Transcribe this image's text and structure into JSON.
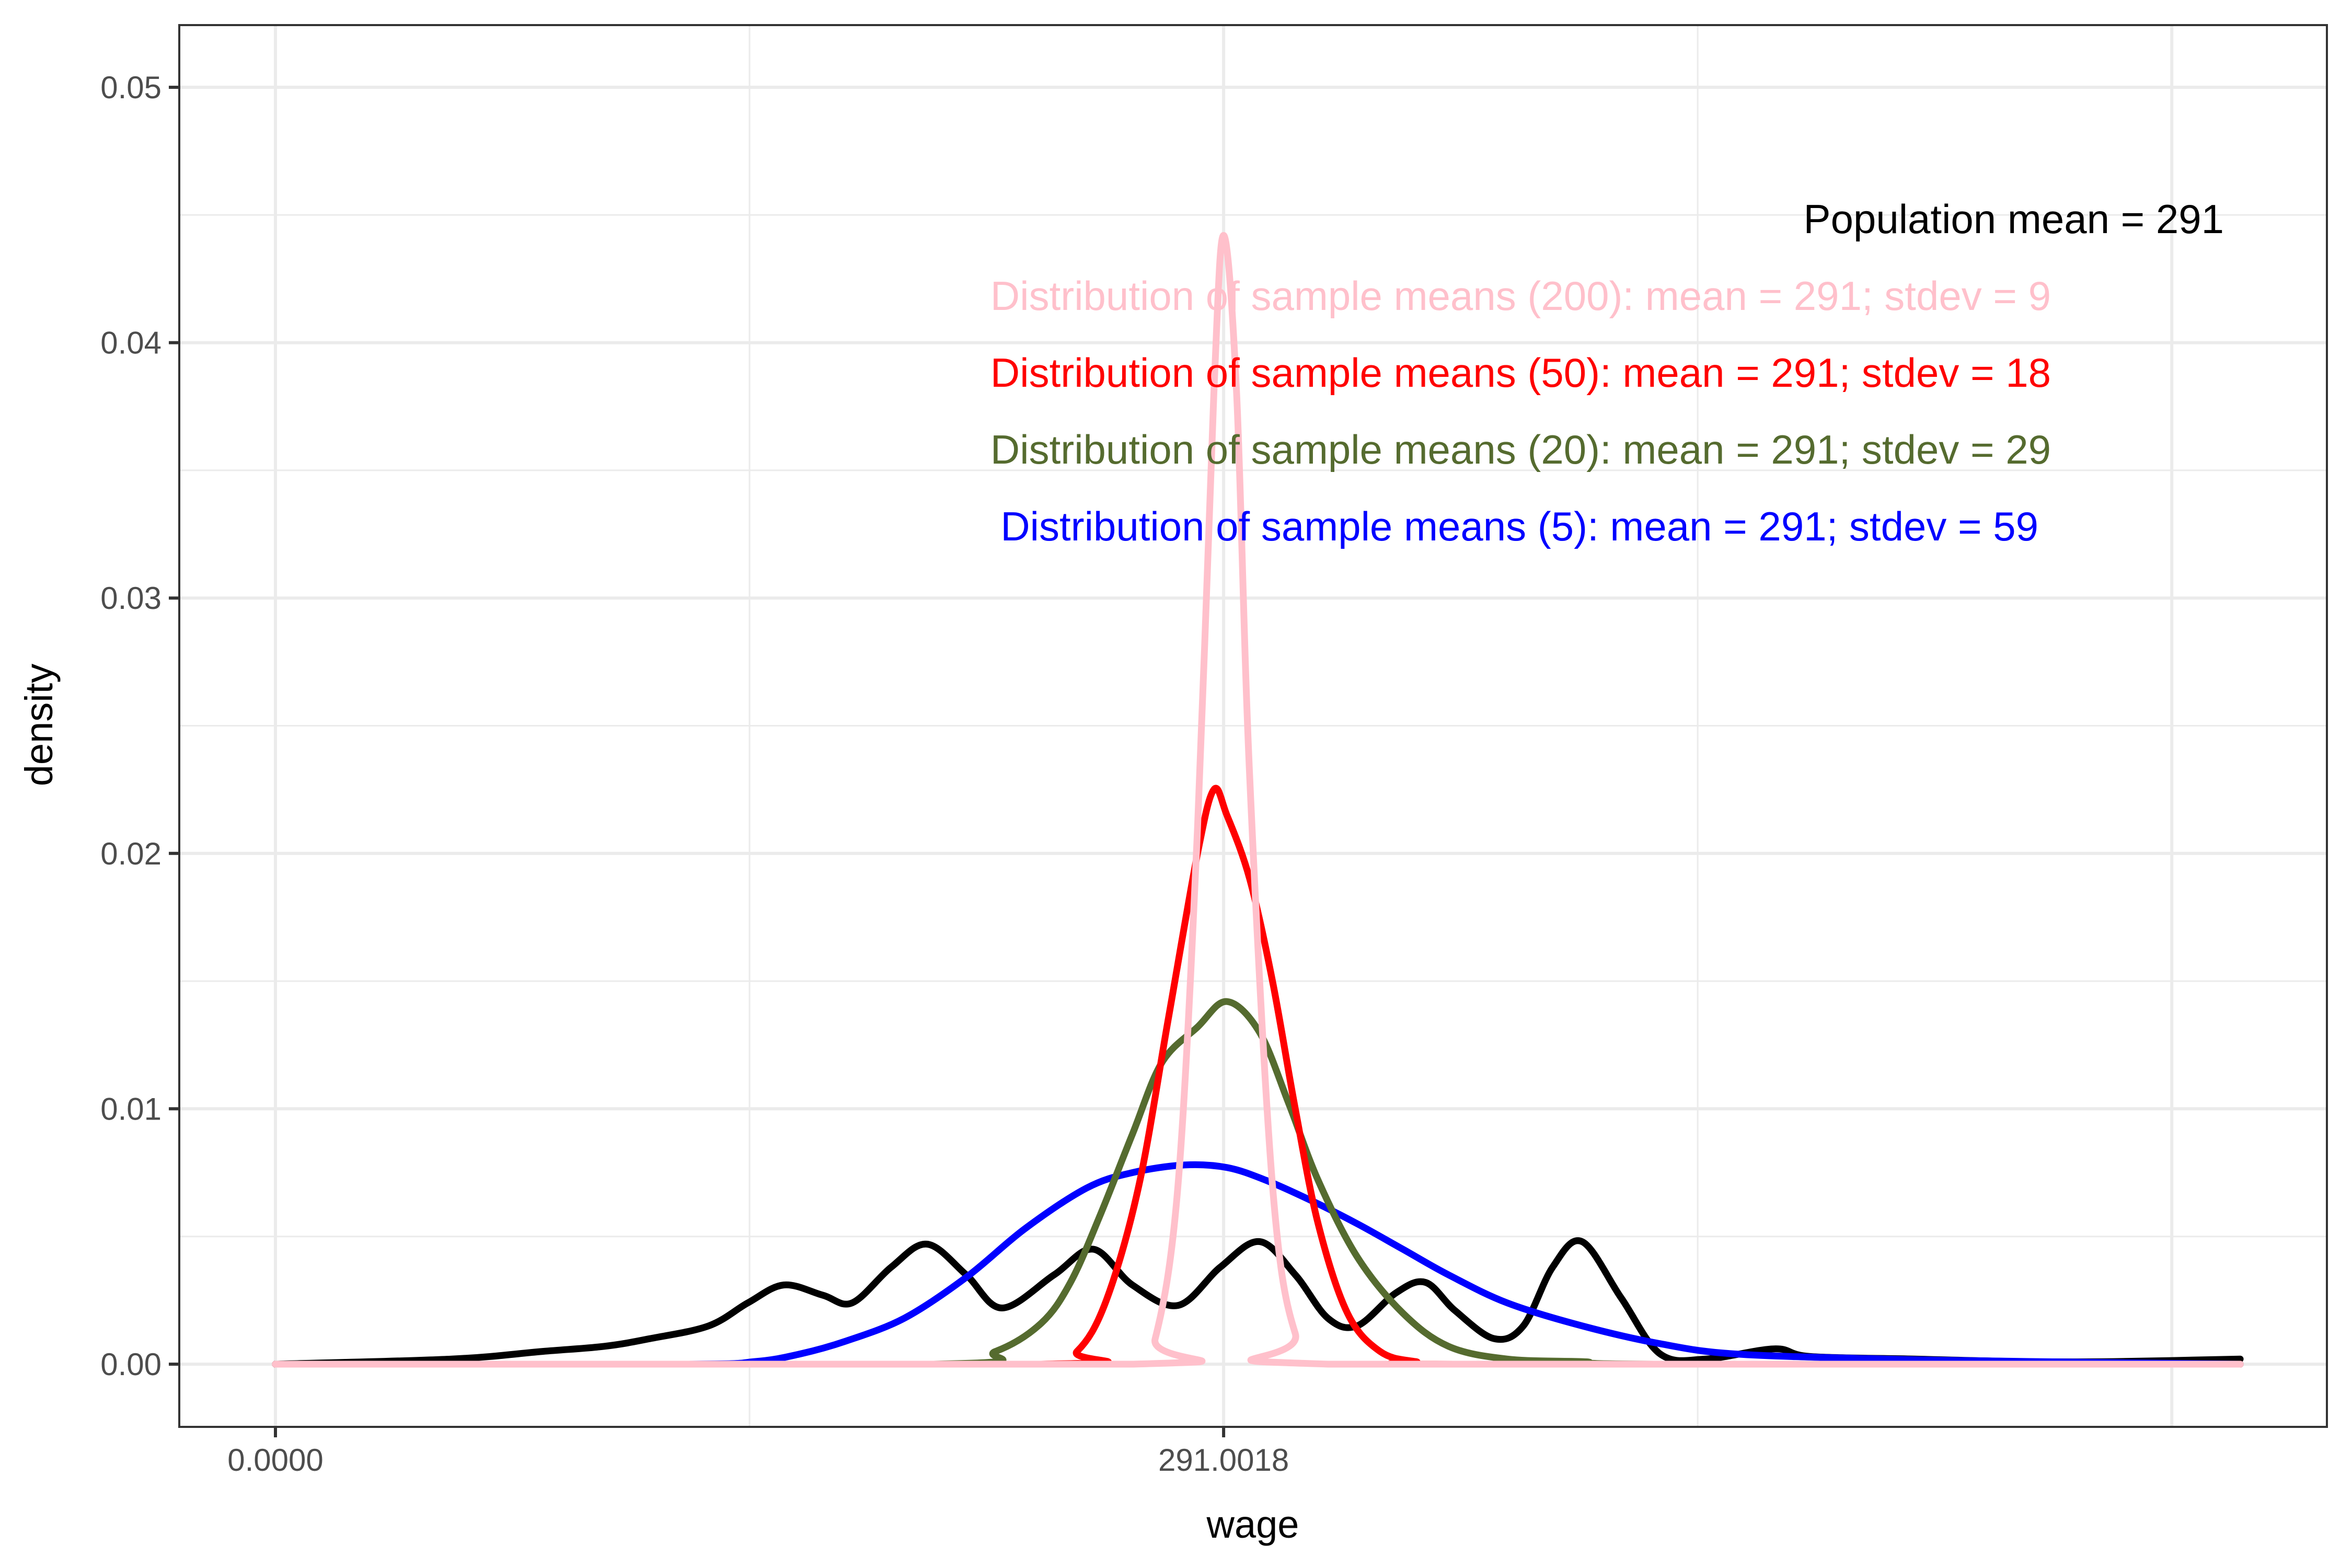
{
  "chart_data": {
    "type": "line",
    "title": "",
    "xlabel": "wage",
    "ylabel": "density",
    "xlim": [
      -29.3,
      629.0
    ],
    "ylim": [
      -0.0025,
      0.0524
    ],
    "x_ticks": [
      {
        "value": 0,
        "label": "0.0000"
      },
      {
        "value": 291.0018,
        "label": "291.0018"
      }
    ],
    "x_major_grid": [
      0,
      291.0018,
      582.0036
    ],
    "x_minor_grid": [
      145.5,
      436.5
    ],
    "y_ticks": [
      {
        "value": 0.0,
        "label": "0.00"
      },
      {
        "value": 0.01,
        "label": "0.01"
      },
      {
        "value": 0.02,
        "label": "0.02"
      },
      {
        "value": 0.03,
        "label": "0.03"
      },
      {
        "value": 0.04,
        "label": "0.04"
      },
      {
        "value": 0.05,
        "label": "0.05"
      }
    ],
    "y_minor_grid": [
      0.005,
      0.015,
      0.025,
      0.035,
      0.045
    ],
    "grid": true,
    "legend": "none",
    "series": [
      {
        "name": "Population",
        "color": "#000000",
        "x": [
          0,
          54,
          82,
          101,
          115,
          133,
          145,
          156,
          168,
          177,
          189,
          200,
          212,
          223,
          239,
          251,
          263,
          277,
          290,
          302,
          313,
          323,
          332,
          344,
          353,
          362,
          374,
          383,
          392,
          401,
          413,
          425,
          439,
          460,
          471,
          503,
          536,
          564,
          603
        ],
        "y": [
          0,
          0.0002,
          0.0005,
          0.0007,
          0.001,
          0.0015,
          0.0024,
          0.0031,
          0.0027,
          0.0024,
          0.0038,
          0.0047,
          0.0035,
          0.0022,
          0.0035,
          0.0045,
          0.0031,
          0.0023,
          0.0038,
          0.0048,
          0.0035,
          0.0018,
          0.0015,
          0.0028,
          0.0032,
          0.0021,
          0.001,
          0.0015,
          0.0038,
          0.0048,
          0.0026,
          0.0004,
          0.0002,
          0.0006,
          0.0003,
          0.0002,
          0.0001,
          0.0001,
          0.0002
        ]
      },
      {
        "name": "Sample means (5)",
        "color": "#0000FF",
        "x": [
          0,
          124,
          147,
          161,
          175,
          193,
          212,
          230,
          249,
          263,
          279,
          292,
          304,
          318,
          332,
          346,
          360,
          378,
          401,
          425,
          448,
          494,
          540,
          603
        ],
        "y": [
          0,
          0,
          0.0001,
          0.0004,
          0.0009,
          0.0018,
          0.0034,
          0.0053,
          0.0069,
          0.0075,
          0.0078,
          0.0077,
          0.0072,
          0.0064,
          0.0055,
          0.0045,
          0.0035,
          0.0024,
          0.0015,
          0.0008,
          0.0004,
          0.0002,
          0.0001,
          0
        ]
      },
      {
        "name": "Sample means (20)",
        "color": "#556B2F",
        "x": [
          0,
          202,
          221,
          235,
          244,
          253,
          263,
          272,
          283,
          292,
          302,
          311,
          320,
          332,
          346,
          360,
          378,
          401,
          425,
          603
        ],
        "y": [
          0,
          0,
          0.0005,
          0.0016,
          0.0032,
          0.0058,
          0.009,
          0.0118,
          0.0132,
          0.0142,
          0.013,
          0.0102,
          0.0072,
          0.0042,
          0.002,
          0.0007,
          0.0002,
          0.0001,
          0,
          0
        ]
      },
      {
        "name": "Sample means (50)",
        "color": "#FF0000",
        "x": [
          0,
          235,
          246,
          255,
          265,
          274,
          283,
          288,
          292,
          299,
          306,
          313,
          320,
          329,
          339,
          350,
          364,
          603
        ],
        "y": [
          0,
          0,
          0.0005,
          0.0025,
          0.007,
          0.0135,
          0.02,
          0.0225,
          0.0215,
          0.019,
          0.015,
          0.01,
          0.0055,
          0.002,
          0.0005,
          0.0001,
          0,
          0
        ]
      },
      {
        "name": "Sample means (200)",
        "color": "#FFC0CB",
        "x": [
          0,
          263,
          270,
          277,
          283,
          288,
          291,
          295,
          299,
          306,
          313,
          323,
          603
        ],
        "y": [
          0,
          0,
          0.001,
          0.007,
          0.021,
          0.038,
          0.0442,
          0.038,
          0.023,
          0.007,
          0.0012,
          0,
          0
        ]
      }
    ],
    "annotations": [
      {
        "text": "Population mean = 291",
        "color": "#000000"
      },
      {
        "text": "Distribution of sample means (200): mean = 291; stdev = 9",
        "color": "#FFC0CB"
      },
      {
        "text": "Distribution of sample means (50): mean = 291; stdev = 18",
        "color": "#FF0000"
      },
      {
        "text": "Distribution of sample means (20): mean = 291; stdev = 29",
        "color": "#556B2F"
      },
      {
        "text": "Distribution of sample means (5): mean = 291; stdev = 59",
        "color": "#0000FF"
      }
    ]
  }
}
